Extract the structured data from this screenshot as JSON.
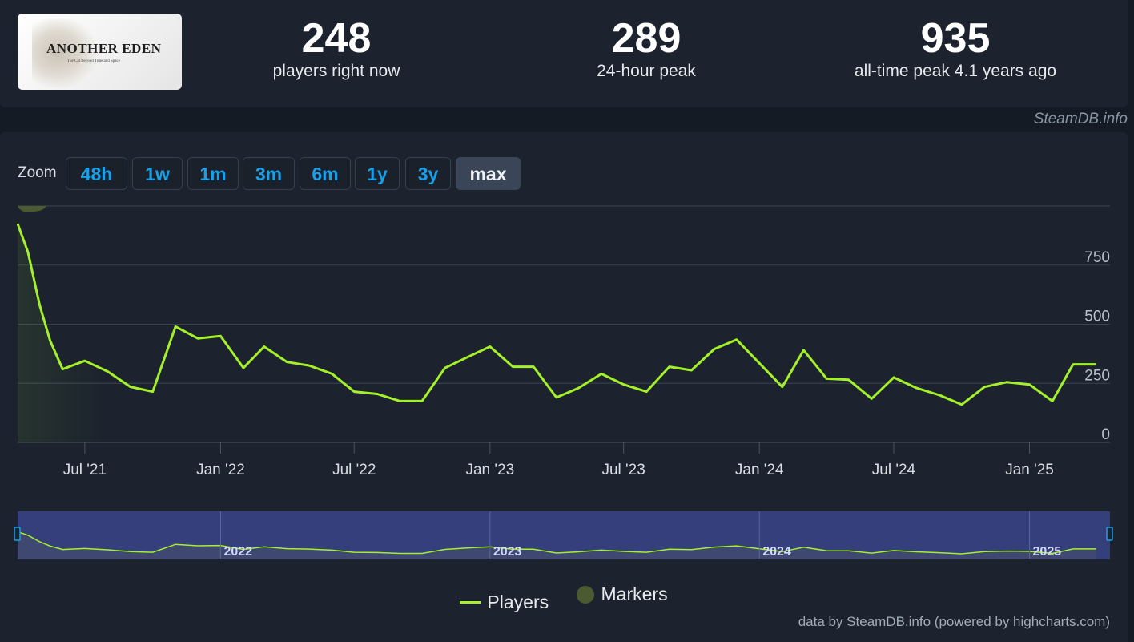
{
  "logo": {
    "title": "ANOTHER EDEN",
    "subtitle": "The Cat Beyond Time and Space"
  },
  "stats": [
    {
      "value": "248",
      "label": "players right now"
    },
    {
      "value": "289",
      "label": "24-hour peak"
    },
    {
      "value": "935",
      "label": "all-time peak 4.1 years ago"
    }
  ],
  "credit_top": "SteamDB.info",
  "zoom": {
    "label": "Zoom",
    "buttons": [
      "48h",
      "1w",
      "1m",
      "3m",
      "6m",
      "1y",
      "3y",
      "max"
    ],
    "active": "max"
  },
  "legend": {
    "players": "Players",
    "markers": "Markers"
  },
  "credit_bottom": "data by SteamDB.info (powered by highcharts.com)",
  "colors": {
    "line": "#a4f12a",
    "marker": "#4b5a30",
    "navigator": "#3a4489"
  },
  "chart_data": {
    "type": "line",
    "series": [
      {
        "name": "Players",
        "x": [
          "2021-04-01",
          "2021-04-15",
          "2021-05-01",
          "2021-05-15",
          "2021-06-01",
          "2021-07-01",
          "2021-08-01",
          "2021-09-01",
          "2021-10-01",
          "2021-11-01",
          "2021-12-01",
          "2022-01-01",
          "2022-02-01",
          "2022-03-01",
          "2022-04-01",
          "2022-05-01",
          "2022-06-01",
          "2022-07-01",
          "2022-08-01",
          "2022-09-01",
          "2022-10-01",
          "2022-11-01",
          "2022-12-01",
          "2023-01-01",
          "2023-02-01",
          "2023-03-01",
          "2023-04-01",
          "2023-05-01",
          "2023-06-01",
          "2023-07-01",
          "2023-08-01",
          "2023-09-01",
          "2023-10-01",
          "2023-11-01",
          "2023-12-01",
          "2024-01-01",
          "2024-02-01",
          "2024-03-01",
          "2024-04-01",
          "2024-05-01",
          "2024-06-01",
          "2024-07-01",
          "2024-08-01",
          "2024-09-01",
          "2024-10-01",
          "2024-11-01",
          "2024-12-01",
          "2025-01-01",
          "2025-02-01",
          "2025-03-01",
          "2025-04-01"
        ],
        "values": [
          925,
          805,
          580,
          430,
          310,
          345,
          300,
          235,
          215,
          490,
          440,
          450,
          315,
          405,
          340,
          325,
          290,
          215,
          205,
          175,
          175,
          315,
          360,
          405,
          320,
          320,
          190,
          230,
          290,
          245,
          215,
          320,
          305,
          395,
          435,
          335,
          235,
          390,
          270,
          265,
          185,
          275,
          230,
          200,
          160,
          235,
          255,
          245,
          175,
          330,
          330
        ]
      }
    ],
    "xticks": [
      "Jul '21",
      "Jan '22",
      "Jul '22",
      "Jan '23",
      "Jul '23",
      "Jan '24",
      "Jul '24",
      "Jan '25"
    ],
    "yticks": [
      "0",
      "250",
      "500",
      "750"
    ],
    "ylim": [
      0,
      1000
    ],
    "xlim": [
      "2021-04-01",
      "2025-04-20"
    ],
    "grid": true,
    "legend_position": "bottom-center",
    "navigator_labels": [
      "2022",
      "2023",
      "2024",
      "2025"
    ]
  }
}
